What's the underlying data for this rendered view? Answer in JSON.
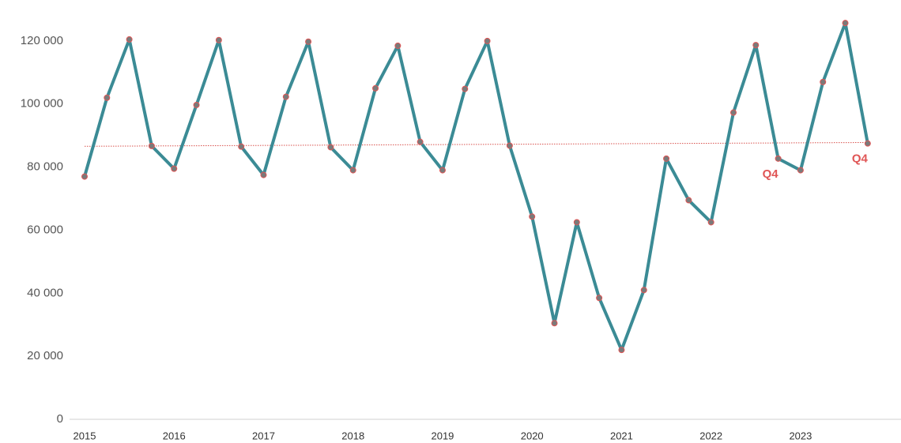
{
  "chart_data": {
    "type": "line",
    "categories": [
      "2015",
      null,
      null,
      null,
      "2016",
      null,
      null,
      null,
      "2017",
      null,
      null,
      null,
      "2018",
      null,
      null,
      null,
      "2019",
      null,
      null,
      null,
      "2020",
      null,
      null,
      null,
      "2021",
      null,
      null,
      null,
      "2022",
      null,
      null,
      null,
      "2023",
      null,
      null,
      null
    ],
    "series": [
      {
        "color": "#3b8b95",
        "marker_color": "#7a7a7a",
        "marker_edge": "#e05555",
        "values": [
          77000,
          102000,
          120500,
          86700,
          79500,
          99700,
          120300,
          86500,
          77500,
          102300,
          119800,
          86300,
          79000,
          105000,
          118500,
          88000,
          79000,
          104800,
          120000,
          86800,
          64300,
          30500,
          62500,
          38500,
          22000,
          41000,
          82700,
          69500,
          62500,
          97300,
          118700,
          82700,
          79000,
          107000,
          125700,
          87500
        ]
      }
    ],
    "trendline": {
      "color": "#d9534f",
      "values": [
        86600,
        87800
      ]
    },
    "annotations": [
      {
        "text": "Q4",
        "index": 31,
        "color": "#e05555"
      },
      {
        "text": "Q4",
        "index": 35,
        "color": "#e05555"
      }
    ],
    "ylim": [
      0,
      130000
    ],
    "yticks": [
      0,
      {
        "value": 20000,
        "label": "20 000"
      },
      {
        "value": 40000,
        "label": "40 000"
      },
      {
        "value": 60000,
        "label": "60 000"
      },
      {
        "value": 80000,
        "label": "80 000"
      },
      {
        "value": 100000,
        "label": "100 000"
      },
      {
        "value": 120000,
        "label": "120 000"
      }
    ]
  }
}
